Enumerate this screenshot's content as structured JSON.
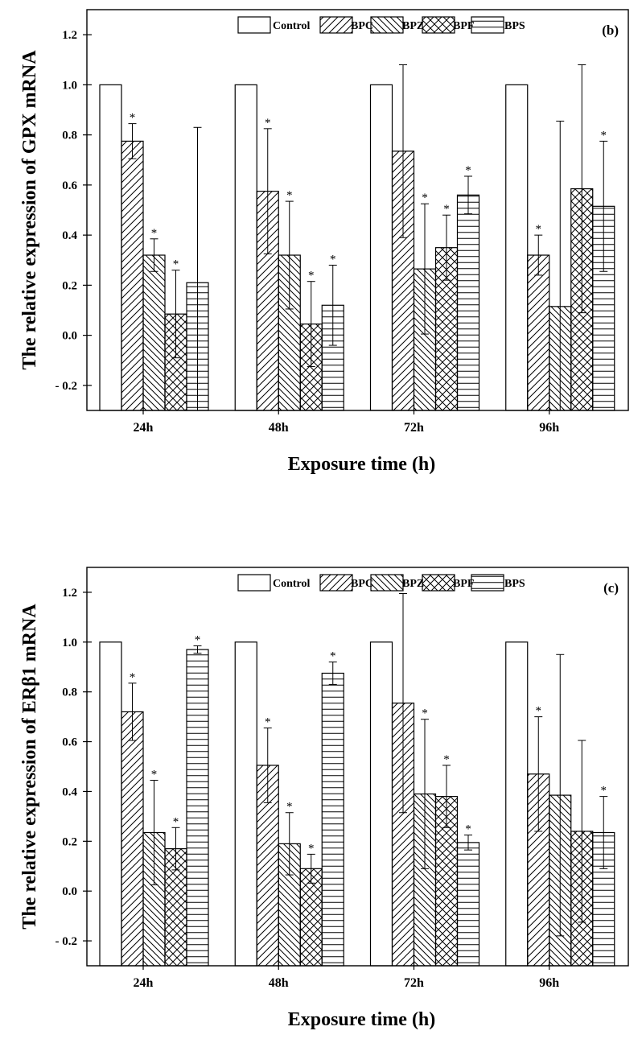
{
  "chart_data": [
    {
      "type": "bar",
      "panel_label": "(b)",
      "categories": [
        "24h",
        "48h",
        "72h",
        "96h"
      ],
      "xlabel": "Exposure time (h)",
      "ylabel": "The relative expression of GPX mRNA",
      "ylim": [
        -0.3,
        1.3
      ],
      "yticks": [
        "- 0.2",
        "0.0",
        "0.2",
        "0.4",
        "0.6",
        "0.8",
        "1.0",
        "1.2"
      ],
      "ytick_values": [
        -0.2,
        0.0,
        0.2,
        0.4,
        0.6,
        0.8,
        1.0,
        1.2
      ],
      "legend_position": "top",
      "grid": false,
      "series": [
        {
          "name": "Control",
          "pattern": "none",
          "values": [
            1.0,
            1.0,
            1.0,
            1.0
          ],
          "errors": [
            null,
            null,
            null,
            null
          ],
          "significant": [
            false,
            false,
            false,
            false
          ]
        },
        {
          "name": "BPC",
          "pattern": "forward-diagonal",
          "values": [
            0.775,
            0.575,
            0.735,
            0.32
          ],
          "errors": [
            0.07,
            0.25,
            0.345,
            0.08
          ],
          "significant": [
            true,
            true,
            false,
            true
          ]
        },
        {
          "name": "BPZ",
          "pattern": "back-diagonal",
          "values": [
            0.32,
            0.32,
            0.265,
            0.115
          ],
          "errors": [
            0.065,
            0.215,
            0.26,
            0.74
          ],
          "significant": [
            true,
            true,
            true,
            false
          ]
        },
        {
          "name": "BPF",
          "pattern": "crosshatch",
          "values": [
            0.085,
            0.045,
            0.35,
            0.585
          ],
          "errors": [
            0.175,
            0.17,
            0.13,
            0.495
          ],
          "significant": [
            true,
            true,
            true,
            false
          ]
        },
        {
          "name": "BPS",
          "pattern": "horizontal",
          "values": [
            0.21,
            0.12,
            0.56,
            0.515
          ],
          "errors": [
            0.62,
            0.16,
            0.075,
            0.26
          ],
          "significant": [
            false,
            true,
            true,
            true
          ]
        }
      ],
      "annotation_symbol": "*"
    },
    {
      "type": "bar",
      "panel_label": "(c)",
      "categories": [
        "24h",
        "48h",
        "72h",
        "96h"
      ],
      "xlabel": "Exposure time (h)",
      "ylabel": "The relative expression of ERβ1 mRNA",
      "ylim": [
        -0.3,
        1.3
      ],
      "yticks": [
        "- 0.2",
        "0.0",
        "0.2",
        "0.4",
        "0.6",
        "0.8",
        "1.0",
        "1.2"
      ],
      "ytick_values": [
        -0.2,
        0.0,
        0.2,
        0.4,
        0.6,
        0.8,
        1.0,
        1.2
      ],
      "legend_position": "top",
      "grid": false,
      "series": [
        {
          "name": "Control",
          "pattern": "none",
          "values": [
            1.0,
            1.0,
            1.0,
            1.0
          ],
          "errors": [
            null,
            null,
            null,
            null
          ],
          "significant": [
            false,
            false,
            false,
            false
          ]
        },
        {
          "name": "BPC",
          "pattern": "forward-diagonal",
          "values": [
            0.72,
            0.505,
            0.755,
            0.47
          ],
          "errors": [
            0.115,
            0.15,
            0.44,
            0.23
          ],
          "significant": [
            true,
            true,
            false,
            true
          ]
        },
        {
          "name": "BPZ",
          "pattern": "back-diagonal",
          "values": [
            0.235,
            0.19,
            0.39,
            0.385
          ],
          "errors": [
            0.21,
            0.125,
            0.3,
            0.565
          ],
          "significant": [
            true,
            true,
            true,
            false
          ]
        },
        {
          "name": "BPF",
          "pattern": "crosshatch",
          "values": [
            0.17,
            0.09,
            0.38,
            0.24
          ],
          "errors": [
            0.085,
            0.058,
            0.125,
            0.365
          ],
          "significant": [
            true,
            true,
            true,
            false
          ]
        },
        {
          "name": "BPS",
          "pattern": "horizontal",
          "values": [
            0.97,
            0.875,
            0.195,
            0.235
          ],
          "errors": [
            0.015,
            0.045,
            0.03,
            0.145
          ],
          "significant": [
            true,
            true,
            true,
            true
          ]
        }
      ],
      "annotation_symbol": "*"
    }
  ]
}
